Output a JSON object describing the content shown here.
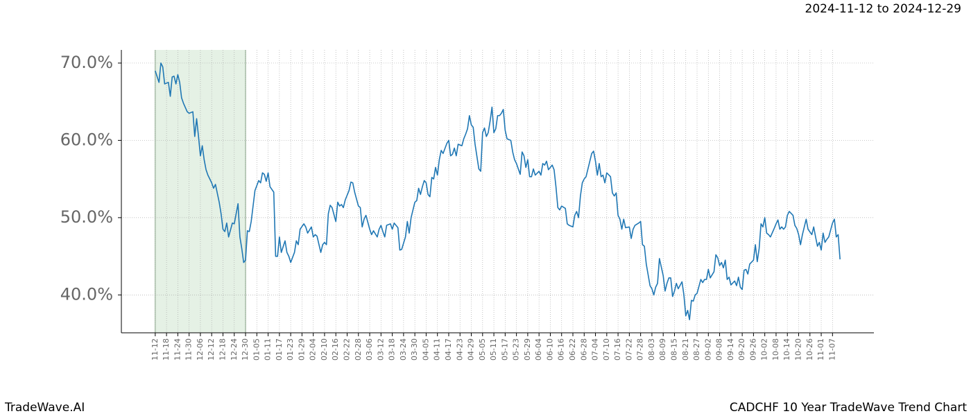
{
  "chart_data": {
    "type": "line",
    "subtitle": "2024-11-12 to 2024-12-29",
    "brand": "TradeWave.AI",
    "title": "CADCHF 10 Year TradeWave Trend Chart",
    "grid": true,
    "xlim": [
      -18,
      382
    ],
    "ylim": [
      35.1,
      71.7
    ],
    "yticks": [
      {
        "value": 40,
        "label": "40.0%"
      },
      {
        "value": 50,
        "label": "50.0%"
      },
      {
        "value": 60,
        "label": "60.0%"
      },
      {
        "value": 70,
        "label": "70.0%"
      }
    ],
    "xticks": [
      {
        "value": 0,
        "label": "11-12"
      },
      {
        "value": 6,
        "label": "11-18"
      },
      {
        "value": 12,
        "label": "11-24"
      },
      {
        "value": 18,
        "label": "11-30"
      },
      {
        "value": 24,
        "label": "12-06"
      },
      {
        "value": 30,
        "label": "12-12"
      },
      {
        "value": 36,
        "label": "12-18"
      },
      {
        "value": 42,
        "label": "12-24"
      },
      {
        "value": 48,
        "label": "12-30"
      },
      {
        "value": 54,
        "label": "01-05"
      },
      {
        "value": 60,
        "label": "01-11"
      },
      {
        "value": 66,
        "label": "01-17"
      },
      {
        "value": 72,
        "label": "01-23"
      },
      {
        "value": 78,
        "label": "01-29"
      },
      {
        "value": 84,
        "label": "02-04"
      },
      {
        "value": 90,
        "label": "02-10"
      },
      {
        "value": 96,
        "label": "02-16"
      },
      {
        "value": 102,
        "label": "02-22"
      },
      {
        "value": 108,
        "label": "02-28"
      },
      {
        "value": 114,
        "label": "03-06"
      },
      {
        "value": 120,
        "label": "03-12"
      },
      {
        "value": 126,
        "label": "03-18"
      },
      {
        "value": 132,
        "label": "03-24"
      },
      {
        "value": 138,
        "label": "03-30"
      },
      {
        "value": 144,
        "label": "04-05"
      },
      {
        "value": 150,
        "label": "04-11"
      },
      {
        "value": 156,
        "label": "04-17"
      },
      {
        "value": 162,
        "label": "04-23"
      },
      {
        "value": 168,
        "label": "04-29"
      },
      {
        "value": 174,
        "label": "05-05"
      },
      {
        "value": 180,
        "label": "05-11"
      },
      {
        "value": 186,
        "label": "05-17"
      },
      {
        "value": 192,
        "label": "05-23"
      },
      {
        "value": 198,
        "label": "05-29"
      },
      {
        "value": 204,
        "label": "06-04"
      },
      {
        "value": 210,
        "label": "06-10"
      },
      {
        "value": 216,
        "label": "06-16"
      },
      {
        "value": 222,
        "label": "06-22"
      },
      {
        "value": 228,
        "label": "06-28"
      },
      {
        "value": 234,
        "label": "07-04"
      },
      {
        "value": 240,
        "label": "07-10"
      },
      {
        "value": 246,
        "label": "07-16"
      },
      {
        "value": 252,
        "label": "07-22"
      },
      {
        "value": 258,
        "label": "07-28"
      },
      {
        "value": 264,
        "label": "08-03"
      },
      {
        "value": 270,
        "label": "08-09"
      },
      {
        "value": 276,
        "label": "08-15"
      },
      {
        "value": 282,
        "label": "08-21"
      },
      {
        "value": 288,
        "label": "08-27"
      },
      {
        "value": 294,
        "label": "09-02"
      },
      {
        "value": 300,
        "label": "09-08"
      },
      {
        "value": 306,
        "label": "09-14"
      },
      {
        "value": 312,
        "label": "09-20"
      },
      {
        "value": 318,
        "label": "09-26"
      },
      {
        "value": 324,
        "label": "10-02"
      },
      {
        "value": 330,
        "label": "10-08"
      },
      {
        "value": 336,
        "label": "10-14"
      },
      {
        "value": 342,
        "label": "10-20"
      },
      {
        "value": 348,
        "label": "10-26"
      },
      {
        "value": 354,
        "label": "11-01"
      },
      {
        "value": 360,
        "label": "11-07"
      }
    ],
    "highlight": {
      "xlim": [
        0,
        48
      ],
      "color": "#e5f1e5",
      "edge": "#b9cdb9"
    },
    "x": [
      0,
      2,
      3,
      4,
      5,
      7,
      8,
      9,
      10,
      11,
      12,
      13,
      14,
      15,
      17,
      18,
      20,
      21,
      22,
      23,
      24,
      25,
      26,
      27,
      28,
      29,
      30,
      31,
      32,
      34,
      35,
      36,
      37,
      38,
      39,
      41,
      42,
      44,
      45,
      46,
      47,
      48,
      49,
      50,
      51,
      52,
      53,
      55,
      56,
      57,
      58,
      59,
      60,
      61,
      63,
      64,
      65,
      66,
      67,
      69,
      70,
      71,
      72,
      74,
      75,
      76,
      77,
      79,
      80,
      81,
      83,
      84,
      85,
      86,
      88,
      89,
      90,
      91,
      92,
      93,
      94,
      96,
      97,
      98,
      99,
      100,
      101,
      103,
      104,
      105,
      106,
      108,
      109,
      110,
      111,
      112,
      114,
      115,
      116,
      118,
      119,
      120,
      121,
      122,
      123,
      125,
      126,
      127,
      129,
      130,
      131,
      133,
      134,
      135,
      136,
      138,
      139,
      140,
      141,
      142,
      143,
      144,
      145,
      146,
      147,
      148,
      149,
      150,
      151,
      152,
      153,
      155,
      156,
      157,
      158,
      159,
      160,
      161,
      163,
      164,
      165,
      166,
      167,
      168,
      169,
      170,
      172,
      173,
      174,
      175,
      176,
      177,
      178,
      179,
      180,
      181,
      182,
      183,
      184,
      185,
      186,
      187,
      189,
      190,
      191,
      192,
      194,
      195,
      196,
      197,
      198,
      199,
      200,
      201,
      202,
      204,
      205,
      206,
      207,
      208,
      209,
      211,
      212,
      213,
      214,
      215,
      216,
      218,
      219,
      220,
      222,
      223,
      224,
      225,
      226,
      227,
      228,
      229,
      231,
      232,
      233,
      234,
      235,
      236,
      237,
      238,
      239,
      240,
      242,
      243,
      244,
      245,
      246,
      247,
      248,
      249,
      250,
      252,
      253,
      254,
      255,
      257,
      258,
      259,
      260,
      261,
      263,
      264,
      265,
      266,
      267,
      268,
      270,
      271,
      272,
      273,
      274,
      275,
      276,
      277,
      278,
      280,
      281,
      282,
      283,
      284,
      285,
      286,
      287,
      288,
      290,
      291,
      292,
      293,
      294,
      295,
      297,
      298,
      299,
      300,
      301,
      302,
      303,
      304,
      305,
      306,
      308,
      309,
      310,
      311,
      312,
      313,
      314,
      315,
      316,
      318,
      319,
      320,
      321,
      322,
      323,
      324,
      325,
      326,
      327,
      329,
      330,
      331,
      332,
      333,
      334,
      335,
      336,
      337,
      339,
      340,
      341,
      342,
      343,
      344,
      345,
      346,
      347,
      349,
      350,
      351,
      352,
      353,
      354,
      355,
      356,
      357,
      358,
      360,
      361,
      362,
      363,
      364
    ],
    "series": [
      {
        "color": "#1f77b4",
        "values": [
          69,
          67.5,
          70,
          69.5,
          67.3,
          67.5,
          65.7,
          68.2,
          68.3,
          67.3,
          68.5,
          67.5,
          65.5,
          64.8,
          63.7,
          63.5,
          63.7,
          60.5,
          62.8,
          60.5,
          58,
          59.3,
          57.5,
          56.2,
          55.5,
          55,
          54.5,
          53.8,
          54.3,
          52,
          50.5,
          48.5,
          48.2,
          49.3,
          47.5,
          49.3,
          49.2,
          51.8,
          47.5,
          46,
          44.2,
          44.5,
          48.3,
          48.2,
          49.5,
          51.5,
          53.5,
          54.8,
          54.5,
          55.8,
          55.6,
          54.7,
          55.8,
          54,
          53.3,
          45,
          45,
          47.5,
          45.5,
          47,
          45.5,
          45,
          44.2,
          45.5,
          47,
          46.5,
          48.5,
          49.2,
          48.8,
          48,
          48.8,
          47.5,
          47.8,
          47.6,
          45.5,
          46.5,
          46.8,
          46.5,
          50.5,
          51.6,
          51.3,
          49.5,
          52,
          51.5,
          51.7,
          51.3,
          52.3,
          53.5,
          54.6,
          54.5,
          53.3,
          51.5,
          51.3,
          48.8,
          49.8,
          50.3,
          48.5,
          47.8,
          48.3,
          47.5,
          48.5,
          49,
          48.2,
          47.5,
          49,
          49.2,
          48.5,
          49.3,
          48.7,
          45.8,
          45.9,
          47.5,
          49.5,
          48,
          50,
          52,
          52.2,
          53.8,
          53,
          54,
          54.8,
          54.5,
          53,
          52.7,
          55.2,
          55,
          56.5,
          55.5,
          57.5,
          58.7,
          58.3,
          59.6,
          60,
          58,
          58.2,
          59,
          58,
          59.5,
          59.3,
          60.2,
          60.8,
          61.5,
          63.2,
          62,
          61.7,
          59.5,
          56.3,
          56,
          61,
          61.6,
          60.5,
          61,
          62.5,
          64.3,
          61,
          61.5,
          63.2,
          63.2,
          63.5,
          64,
          61.3,
          60.2,
          60,
          58.5,
          57.5,
          57,
          55.6,
          58.5,
          58,
          56.5,
          57.5,
          55.3,
          55.3,
          56.3,
          55.5,
          56,
          55.5,
          57,
          56.8,
          57.3,
          56.2,
          56.8,
          56.2,
          54,
          51.3,
          51,
          51.5,
          51.2,
          49.2,
          49,
          48.8,
          50.3,
          50.8,
          50,
          52.8,
          54.5,
          55,
          55.3,
          57.3,
          58.3,
          58.6,
          57.3,
          55.5,
          57,
          55.3,
          55.5,
          54.5,
          55.8,
          55.3,
          53.2,
          52.8,
          53.2,
          50.3,
          49.8,
          48.5,
          49.8,
          48.7,
          48.8,
          47.3,
          48.5,
          49,
          49.3,
          49.5,
          46.5,
          46.3,
          44,
          41.2,
          40.8,
          40,
          41,
          41.5,
          44.7,
          42.5,
          40.5,
          41.5,
          42.2,
          42.2,
          39.8,
          40.5,
          41.5,
          40.8,
          41.7,
          40,
          37.3,
          38,
          36.8,
          39.3,
          39.2,
          40,
          40.2,
          42,
          41.6,
          42,
          42,
          43.3,
          42.2,
          43,
          45.2,
          44.8,
          43.8,
          44.2,
          43.5,
          44.5,
          42,
          42.3,
          41.3,
          41.8,
          41.2,
          42.3,
          41,
          40.7,
          43.2,
          43.3,
          42.7,
          44,
          44.5,
          46.5,
          44.3,
          46,
          49.2,
          48.8,
          50,
          48,
          47.8,
          47.5,
          48.6,
          49.2,
          49.7,
          48.5,
          48.8,
          48.5,
          48.8,
          50.3,
          50.8,
          50.3,
          49,
          48.6,
          47.8,
          46.5,
          47.8,
          48.8,
          49.8,
          48.5,
          47.8,
          48.8,
          47.5,
          46.3,
          46.8,
          45.8,
          48,
          46.8,
          47.2,
          47.5,
          49.3,
          49.8,
          47.5,
          47.8,
          44.6
        ]
      }
    ]
  }
}
